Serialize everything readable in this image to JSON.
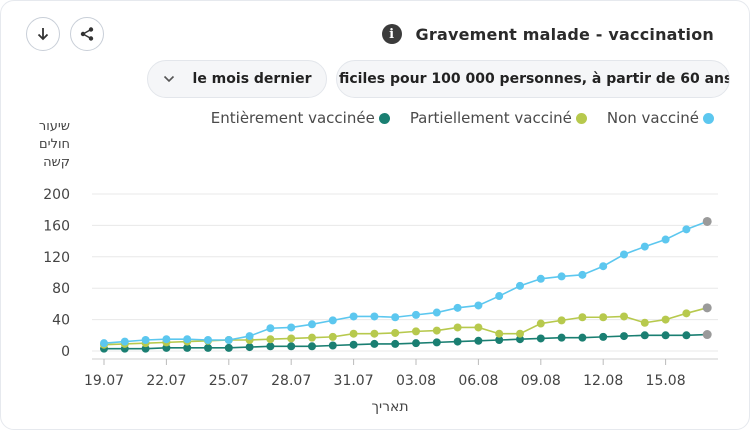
{
  "toolbar": {
    "download_icon": "arrow-down-icon",
    "share_icon": "share-icon",
    "info_icon": "info-icon",
    "info_glyph": "i",
    "title": "Gravement malade - vaccination"
  },
  "filters": {
    "period": "le mois dernier",
    "period_icon": "chevron-down-icon",
    "metric": "ficiles pour 100 000 personnes, à partir de 60 ans"
  },
  "colors": {
    "entierement": "#1a7f72",
    "partiellement": "#b7c94d",
    "non": "#5cc7ef",
    "last_point": "#9a9a9a"
  },
  "chart_data": {
    "type": "line",
    "ylabel": "שיעור חולים קשה",
    "xlabel": "תאריך",
    "ylim": [
      0,
      200
    ],
    "yticks": [
      0,
      40,
      80,
      120,
      160,
      200
    ],
    "xtick_labels": [
      "19.07",
      "22.07",
      "25.07",
      "28.07",
      "31.07",
      "03.08",
      "06.08",
      "09.08",
      "12.08",
      "15.08"
    ],
    "x": [
      "19.07",
      "20.07",
      "21.07",
      "22.07",
      "23.07",
      "24.07",
      "25.07",
      "26.07",
      "27.07",
      "28.07",
      "29.07",
      "30.07",
      "31.07",
      "01.08",
      "02.08",
      "03.08",
      "04.08",
      "05.08",
      "06.08",
      "07.08",
      "08.08",
      "09.08",
      "10.08",
      "11.08",
      "12.08",
      "13.08",
      "14.08",
      "15.08",
      "16.08",
      "17.08"
    ],
    "legend_position": "top-right",
    "series": [
      {
        "name": "Entièrement vaccinée",
        "key": "entierement",
        "values": [
          3,
          3,
          3,
          4,
          4,
          4,
          4,
          5,
          6,
          6,
          6,
          7,
          8,
          9,
          9,
          10,
          11,
          12,
          13,
          14,
          15,
          16,
          17,
          17,
          18,
          19,
          20,
          20,
          20,
          21
        ]
      },
      {
        "name": "Partiellement vacciné",
        "key": "partiellement",
        "values": [
          8,
          9,
          10,
          11,
          12,
          13,
          14,
          14,
          15,
          16,
          17,
          18,
          22,
          22,
          23,
          25,
          26,
          30,
          30,
          22,
          22,
          35,
          39,
          43,
          43,
          44,
          36,
          40,
          48,
          55
        ]
      },
      {
        "name": "Non vacciné",
        "key": "non",
        "values": [
          10,
          12,
          14,
          15,
          15,
          14,
          14,
          19,
          29,
          30,
          34,
          39,
          44,
          44,
          43,
          46,
          49,
          55,
          58,
          70,
          83,
          92,
          95,
          97,
          108,
          123,
          133,
          142,
          155,
          165
        ]
      }
    ]
  }
}
